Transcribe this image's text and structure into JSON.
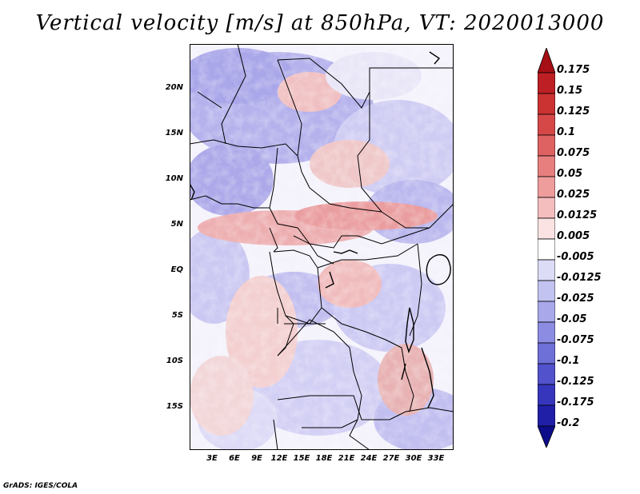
{
  "title": "Vertical velocity [m/s] at 850hPa, VT: 2020013000",
  "footer": "GrADS: IGES/COLA",
  "map": {
    "variable": "Vertical velocity",
    "units": "m/s",
    "level": "850hPa",
    "valid_time": "2020013000",
    "lat_labels": [
      "20N",
      "15N",
      "10N",
      "5N",
      "EQ",
      "5S",
      "10S",
      "15S"
    ],
    "lon_labels": [
      "3E",
      "6E",
      "9E",
      "12E",
      "15E",
      "18E",
      "21E",
      "24E",
      "27E",
      "30E",
      "33E"
    ]
  },
  "colorbar": {
    "labels": [
      "0.175",
      "0.15",
      "0.125",
      "0.1",
      "0.075",
      "0.05",
      "0.025",
      "0.0125",
      "0.005",
      "-0.005",
      "-0.0125",
      "-0.025",
      "-0.05",
      "-0.075",
      "-0.1",
      "-0.125",
      "-0.175",
      "-0.2"
    ],
    "colors": [
      "#a50f15",
      "#bd1f24",
      "#cb3232",
      "#d64848",
      "#df6262",
      "#e77f7f",
      "#ee9c9c",
      "#f5bebe",
      "#fbe3e3",
      "#ffffff",
      "#dcdcf7",
      "#c3c3f1",
      "#a8a8eb",
      "#8c8ce2",
      "#6f6fd8",
      "#5252cc",
      "#3636bd",
      "#1f1fa8",
      "#0d0d8a"
    ]
  }
}
